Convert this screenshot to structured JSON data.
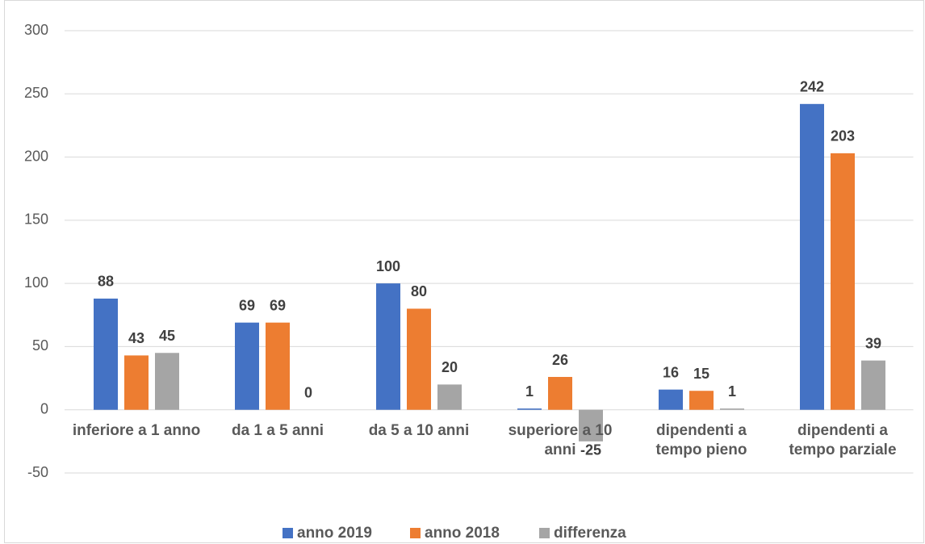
{
  "chart_data": {
    "type": "bar",
    "categories": [
      "inferiore a 1 anno",
      "da 1 a 5 anni",
      "da 5 a 10 anni",
      "superiore a 10 anni",
      "dipendenti a tempo pieno",
      "dipendenti a tempo parziale"
    ],
    "series": [
      {
        "name": "anno 2019",
        "color": "#4472c4",
        "values": [
          88,
          69,
          100,
          1,
          16,
          242
        ]
      },
      {
        "name": "anno 2018",
        "color": "#ed7d31",
        "values": [
          43,
          69,
          80,
          26,
          15,
          203
        ]
      },
      {
        "name": "differenza",
        "color": "#a5a5a5",
        "values": [
          45,
          0,
          20,
          -25,
          1,
          39
        ]
      }
    ],
    "ylim": [
      -50,
      300
    ],
    "yticks": [
      -50,
      0,
      50,
      100,
      150,
      200,
      250,
      300
    ],
    "grid": true,
    "legend": "bottom"
  }
}
